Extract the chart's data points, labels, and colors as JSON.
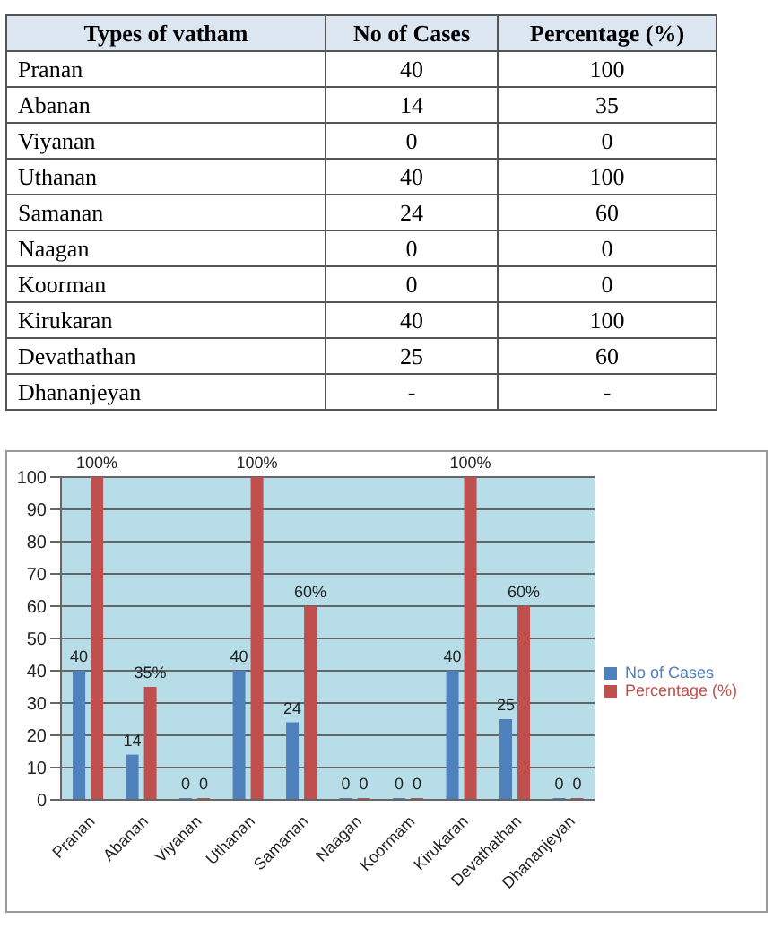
{
  "chart_data": [
    {
      "type": "other",
      "categories": [
        "Types of vatham",
        "No of Cases",
        "Percentage (%)"
      ],
      "y_categories": [
        "Pranan",
        "Abanan",
        "Viyanan",
        "Uthanan",
        "Samanan",
        "Naagan",
        "Koorman",
        "Kirukaran",
        "Devathathan",
        "Dhananjeyan"
      ],
      "cell_labels": [
        [
          "40",
          "100"
        ],
        [
          "14",
          "35"
        ],
        [
          "0",
          "0"
        ],
        [
          "40",
          "100"
        ],
        [
          "24",
          "60"
        ],
        [
          "0",
          "0"
        ],
        [
          "0",
          "0"
        ],
        [
          "40",
          "100"
        ],
        [
          "25",
          "60"
        ],
        [
          "-",
          "-"
        ]
      ]
    },
    {
      "type": "bar",
      "categories": [
        "Pranan",
        "Abanan",
        "Viyanan",
        "Uthanan",
        "Samanan",
        "Naagan",
        "Koormam",
        "Kirukaran",
        "Devathathan",
        "Dhananjeyan"
      ],
      "series": [
        {
          "name": "No of Cases",
          "color": "#4f81bd",
          "values": [
            40,
            14,
            0,
            40,
            24,
            0,
            0,
            40,
            25,
            0
          ],
          "value_labels": [
            "40",
            "14",
            "0",
            "40",
            "24",
            "0",
            "0",
            "40",
            "25",
            "0"
          ]
        },
        {
          "name": "Percentage (%)",
          "color": "#c0504d",
          "values": [
            100,
            35,
            0,
            100,
            60,
            0,
            0,
            100,
            60,
            0
          ],
          "value_labels": [
            "100%",
            "35%",
            "0",
            "100%",
            "60%",
            "0",
            "0",
            "100%",
            "60%",
            "0"
          ]
        }
      ],
      "ylim": [
        0,
        100
      ],
      "yticks": [
        0,
        10,
        20,
        30,
        40,
        50,
        60,
        70,
        80,
        90,
        100
      ],
      "grid": "y",
      "legend": "right"
    }
  ]
}
